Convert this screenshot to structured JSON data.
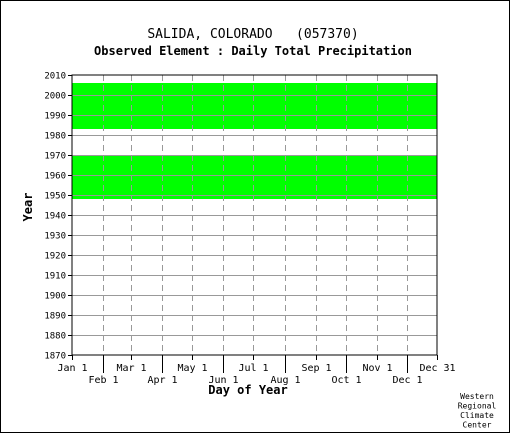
{
  "chart_data": {
    "type": "heatmap",
    "title": "SALIDA, COLORADO   (057370)",
    "subtitle": "Observed Element : Daily Total Precipitation",
    "xlabel": "Day of Year",
    "ylabel": "Year",
    "xlim": [
      1,
      365
    ],
    "ylim": [
      1870,
      2010
    ],
    "y_ticks": [
      1870,
      1880,
      1890,
      1900,
      1910,
      1920,
      1930,
      1940,
      1950,
      1960,
      1970,
      1980,
      1990,
      2000,
      2010
    ],
    "x_ticks_upper": [
      {
        "label": "Jan 1",
        "day": 1
      },
      {
        "label": "Mar 1",
        "day": 60
      },
      {
        "label": "May 1",
        "day": 121
      },
      {
        "label": "Jul 1",
        "day": 182
      },
      {
        "label": "Sep 1",
        "day": 244
      },
      {
        "label": "Nov 1",
        "day": 305
      },
      {
        "label": "Dec 31",
        "day": 365
      }
    ],
    "x_ticks_lower": [
      {
        "label": "Feb 1",
        "day": 32
      },
      {
        "label": "Apr 1",
        "day": 91
      },
      {
        "label": "Jun 1",
        "day": 152
      },
      {
        "label": "Aug 1",
        "day": 213
      },
      {
        "label": "Oct 1",
        "day": 274
      },
      {
        "label": "Dec 1",
        "day": 335
      }
    ],
    "grid": true,
    "data_color": "#00ff00",
    "coverage": [
      {
        "year_start": 1948,
        "year_end": 1970,
        "day_start": 1,
        "day_end": 365
      },
      {
        "year_start": 1983,
        "year_end": 2006,
        "day_start": 1,
        "day_end": 365
      }
    ]
  },
  "footer": {
    "credit_lines": [
      "Western",
      "Regional",
      "Climate",
      "Center"
    ]
  }
}
